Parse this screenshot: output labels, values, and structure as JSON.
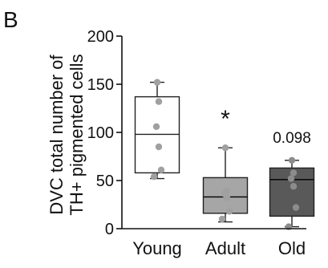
{
  "chart_data": {
    "panel_label": "B",
    "type": "box",
    "ylabel_lines": [
      "DVC total number of",
      "TH+ pigmented cells"
    ],
    "xlabel": "",
    "ylim": [
      0,
      200
    ],
    "yticks": [
      0,
      50,
      100,
      150,
      200
    ],
    "grid": false,
    "legend": "none",
    "categories": [
      "Young",
      "Adult",
      "Old"
    ],
    "boxes": [
      {
        "category": "Young",
        "min": 52,
        "q1": 58,
        "median": 98,
        "q3": 137,
        "max": 152,
        "fill": "#ffffff",
        "points": [
          152,
          132,
          106,
          85,
          61,
          54
        ],
        "annotation": ""
      },
      {
        "category": "Adult",
        "min": 7,
        "q1": 16,
        "median": 33,
        "q3": 53,
        "max": 84,
        "fill": "#a6a6a6",
        "points": [
          84,
          39,
          36,
          32,
          18,
          10
        ],
        "annotation": "*"
      },
      {
        "category": "Old",
        "min": 2,
        "q1": 13,
        "median": 51,
        "q3": 63,
        "max": 71,
        "fill": "#595959",
        "points": [
          71,
          58,
          52,
          44,
          22,
          2
        ],
        "annotation": "0.098"
      }
    ],
    "point_color": "#a0a0a0",
    "point_color_dark": "#8c8c8c"
  }
}
